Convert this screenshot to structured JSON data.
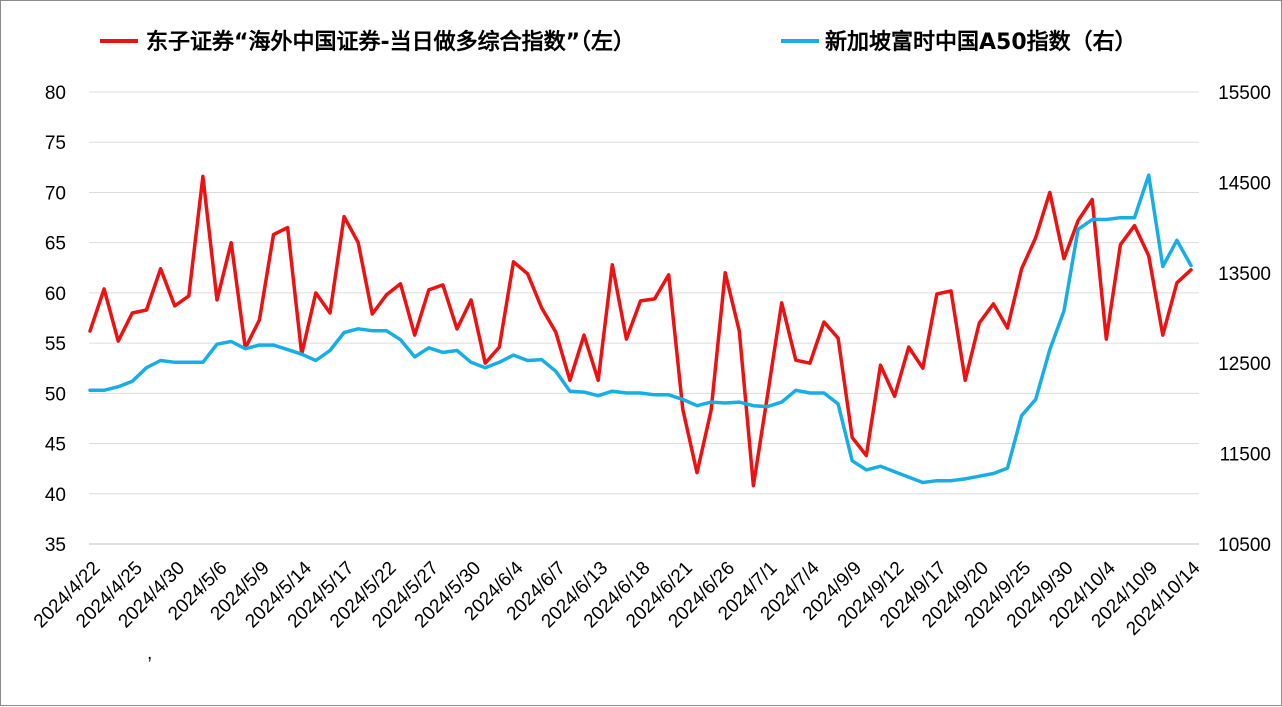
{
  "chart_data": {
    "type": "line",
    "title": "",
    "legend_position": "top",
    "grid": true,
    "x_tick_labels": [
      "2024/4/22",
      "2024/4/25",
      "2024/4/30",
      "2024/5/6",
      "2024/5/9",
      "2024/5/14",
      "2024/5/17",
      "2024/5/22",
      "2024/5/27",
      "2024/5/30",
      "2024/6/4",
      "2024/6/7",
      "2024/6/13",
      "2024/6/18",
      "2024/6/21",
      "2024/6/26",
      "2024/7/1",
      "2024/7/4",
      "2024/9/9",
      "2024/9/12",
      "2024/9/17",
      "2024/9/20",
      "2024/9/25",
      "2024/9/30",
      "2024/10/4",
      "2024/10/9",
      "2024/10/14"
    ],
    "stray_label": ",",
    "y_left": {
      "range": [
        35,
        80
      ],
      "ticks": [
        35,
        40,
        45,
        50,
        55,
        60,
        65,
        70,
        75,
        80
      ]
    },
    "y_right": {
      "range": [
        10500,
        15500
      ],
      "ticks": [
        10500,
        11500,
        12500,
        13500,
        14500,
        15500
      ]
    },
    "series": [
      {
        "name": "东子证券“海外中国证券-当日做多综合指数”（左）",
        "axis": "left",
        "color": "#ee1111",
        "values": [
          56.2,
          60.4,
          55.2,
          58.0,
          58.3,
          62.4,
          58.7,
          59.7,
          71.6,
          59.3,
          65.0,
          54.5,
          57.3,
          65.8,
          66.5,
          53.9,
          60.0,
          58.0,
          67.6,
          65.0,
          57.9,
          59.8,
          60.9,
          55.8,
          60.3,
          60.8,
          56.4,
          59.3,
          53.0,
          54.6,
          63.1,
          61.9,
          58.5,
          56.1,
          51.3,
          55.8,
          51.3,
          62.8,
          55.4,
          59.2,
          59.4,
          61.8,
          48.4,
          42.1,
          48.3,
          62.0,
          56.2,
          40.8,
          49.8,
          59.0,
          53.3,
          53.0,
          57.1,
          55.5,
          45.6,
          43.8,
          52.8,
          49.7,
          54.6,
          52.5,
          59.9,
          60.2,
          51.3,
          57.0,
          58.9,
          56.5,
          62.4,
          65.5,
          70.0,
          63.4,
          67.2,
          69.3,
          55.4,
          64.8,
          66.7,
          63.7,
          55.8,
          61.0,
          62.3
        ]
      },
      {
        "name": "新加坡富时中国A50指数（右）",
        "axis": "right",
        "color": "#17aee6",
        "values": [
          12200,
          12200,
          12240,
          12300,
          12450,
          12530,
          12510,
          12510,
          12510,
          12710,
          12740,
          12660,
          12700,
          12700,
          12650,
          12600,
          12530,
          12640,
          12840,
          12880,
          12860,
          12860,
          12760,
          12570,
          12670,
          12620,
          12640,
          12510,
          12450,
          12510,
          12590,
          12530,
          12540,
          12410,
          12190,
          12180,
          12140,
          12190,
          12170,
          12170,
          12150,
          12150,
          12100,
          12030,
          12070,
          12060,
          12070,
          12030,
          12020,
          12070,
          12200,
          12170,
          12170,
          12050,
          11420,
          11320,
          11360,
          11300,
          11240,
          11180,
          11200,
          11200,
          11220,
          11250,
          11280,
          11340,
          11920,
          12100,
          12650,
          13080,
          13980,
          14090,
          14090,
          14110,
          14110,
          14580,
          13570,
          13860,
          13580
        ]
      }
    ]
  }
}
